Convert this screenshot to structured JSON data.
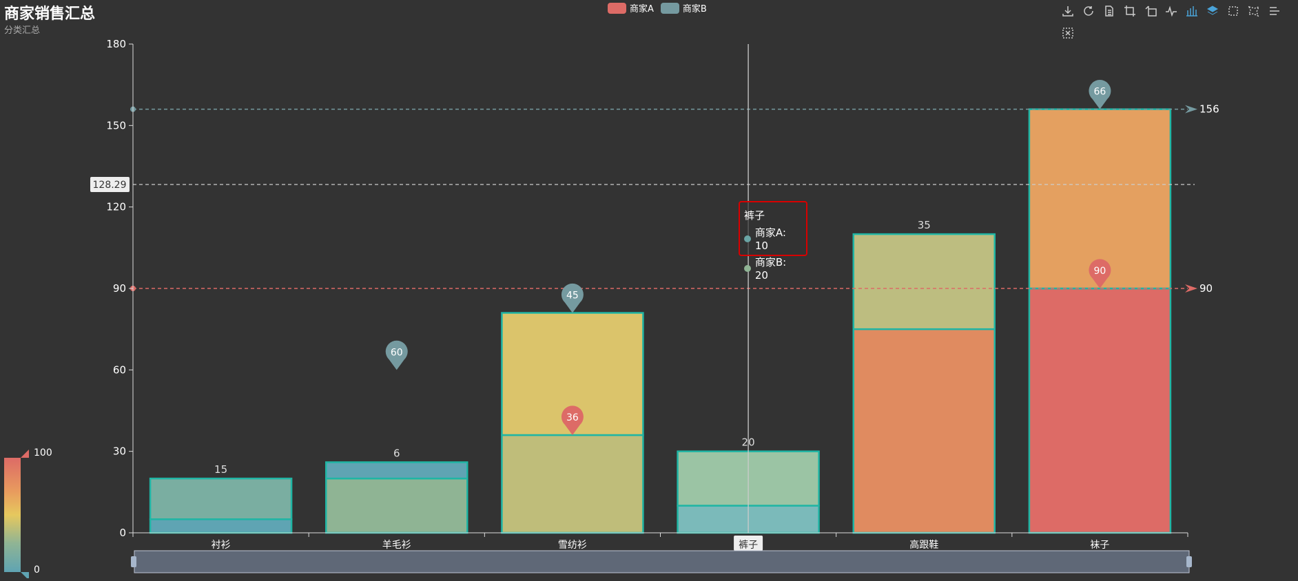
{
  "header": {
    "title": "商家销售汇总",
    "subtitle": "分类汇总"
  },
  "legend": [
    {
      "name": "商家A",
      "color": "#dd6b66"
    },
    {
      "name": "商家B",
      "color": "#759aa0"
    }
  ],
  "toolbox": [
    "download-icon",
    "refresh-icon",
    "data-view-icon",
    "crop-icon",
    "undo-icon",
    "line-chart-icon",
    "bar-chart-icon",
    "stack-icon",
    "rect-select-icon",
    "lasso-select-icon",
    "more-icon",
    "clear-select-icon"
  ],
  "tooltip": {
    "title": "裤子",
    "rows": [
      {
        "text": "商家A: 10",
        "color": "#6aa5a5"
      },
      {
        "text": "商家B: 20",
        "color": "#8fb494"
      }
    ]
  },
  "visual_map": {
    "max_label": "100",
    "min_label": "0",
    "colors": [
      "#dd6b66",
      "#e89c5e",
      "#e6c85e",
      "#8fb494",
      "#5fa4b3"
    ]
  },
  "axis_pointer_label": "128.29",
  "chart_data": {
    "type": "bar",
    "stacked": true,
    "categories": [
      "衬衫",
      "羊毛衫",
      "雪纺衫",
      "裤子",
      "高跟鞋",
      "袜子"
    ],
    "series": [
      {
        "name": "商家A",
        "values": [
          5,
          20,
          36,
          10,
          75,
          90
        ]
      },
      {
        "name": "商家B",
        "values": [
          15,
          6,
          45,
          20,
          35,
          66
        ]
      }
    ],
    "segment_colors": [
      [
        "#5fa4b3",
        "#7aaea1"
      ],
      [
        "#8fb494",
        "#5fa4b3"
      ],
      [
        "#bfbd7a",
        "#dbc46b"
      ],
      [
        "#7bbaba",
        "#9bc4a4"
      ],
      [
        "#e08b60",
        "#bdbd80"
      ],
      [
        "#dd6b66",
        "#e4a060"
      ]
    ],
    "bar_labels": [
      "15",
      "6",
      "",
      "20",
      "35",
      ""
    ],
    "markers": [
      {
        "category": "羊毛衫",
        "value": 60,
        "label": "60",
        "color": "#759aa0"
      },
      {
        "category": "雪纺衫",
        "value": 81,
        "label": "45",
        "color": "#759aa0"
      },
      {
        "category": "雪纺衫",
        "value": 36,
        "label": "36",
        "color": "#dd6b66"
      },
      {
        "category": "袜子",
        "value": 156,
        "label": "66",
        "color": "#759aa0"
      },
      {
        "category": "袜子",
        "value": 90,
        "label": "90",
        "color": "#dd6b66"
      }
    ],
    "mark_lines": [
      {
        "value": 156,
        "label": "156",
        "color": "#759aa0"
      },
      {
        "value": 90,
        "label": "90",
        "color": "#dd6b66"
      }
    ],
    "ylim": [
      0,
      180
    ],
    "yticks": [
      0,
      30,
      60,
      90,
      120,
      150,
      180
    ],
    "highlight_category": "裤子",
    "title": "商家销售汇总",
    "xlabel": "",
    "ylabel": ""
  }
}
